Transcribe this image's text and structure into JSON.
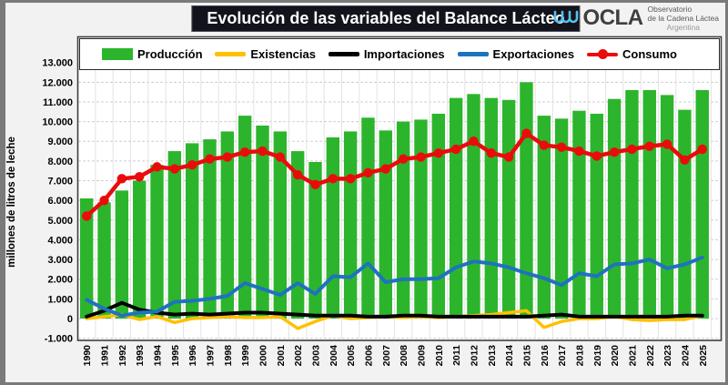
{
  "header": {
    "title": "Evolución de las variables del Balance Lácteo",
    "logo": {
      "name": "OCLA",
      "line1": "Observatorio",
      "line2": "de la Cadena Láctea",
      "line3": "Argentina"
    }
  },
  "chart_data": {
    "type": "bar",
    "subtype": "combo-bar-lines",
    "title": "Evolución de las variables del Balance Lácteo",
    "ylabel": "millones de litros de leche",
    "ylim": [
      -1000,
      13000
    ],
    "ytick_step": 1000,
    "ytick_labels": [
      "13.000",
      "12.000",
      "11.000",
      "10.000",
      "9.000",
      "8.000",
      "7.000",
      "6.000",
      "5.000",
      "4.000",
      "3.000",
      "2.000",
      "1.000",
      "0",
      "-1.000"
    ],
    "grid": "horizontal-dashed",
    "legend_position": "top",
    "categories": [
      "1990",
      "1991",
      "1992",
      "1993",
      "1994",
      "1995",
      "1996",
      "1997",
      "1998",
      "1999",
      "2000",
      "2001",
      "2002",
      "2003",
      "2004",
      "2005",
      "2006",
      "2007",
      "2008",
      "2009",
      "2010",
      "2011",
      "2012",
      "2013",
      "2014",
      "2015",
      "2016",
      "2017",
      "2018",
      "2019",
      "2020",
      "2021",
      "2022",
      "2023",
      "2024",
      "2025"
    ],
    "series": [
      {
        "name": "Producción",
        "type": "bar",
        "color": "#2cb52c",
        "values": [
          6100,
          5900,
          6500,
          7000,
          7800,
          8500,
          8900,
          9100,
          9500,
          10300,
          9800,
          9500,
          8500,
          7950,
          9200,
          9500,
          10200,
          9550,
          10000,
          10100,
          10400,
          11200,
          11400,
          11200,
          11100,
          12000,
          10300,
          10150,
          10550,
          10400,
          11150,
          11600,
          11600,
          11350,
          10600,
          11600
        ]
      },
      {
        "name": "Existencias",
        "type": "line",
        "color": "#ffc000",
        "values": [
          0,
          100,
          200,
          -50,
          100,
          -200,
          0,
          50,
          100,
          50,
          50,
          100,
          -500,
          -150,
          150,
          0,
          50,
          100,
          50,
          100,
          50,
          100,
          150,
          200,
          300,
          400,
          -450,
          -150,
          0,
          0,
          100,
          -50,
          -100,
          -50,
          -50,
          150
        ]
      },
      {
        "name": "Importaciones",
        "type": "line",
        "color": "#000000",
        "values": [
          100,
          400,
          800,
          450,
          300,
          200,
          250,
          200,
          250,
          300,
          300,
          250,
          200,
          150,
          150,
          150,
          100,
          100,
          150,
          150,
          100,
          100,
          100,
          100,
          100,
          100,
          150,
          200,
          100,
          100,
          100,
          100,
          100,
          100,
          150,
          150
        ]
      },
      {
        "name": "Exportaciones",
        "type": "line",
        "color": "#1e73be",
        "values": [
          950,
          500,
          150,
          300,
          350,
          850,
          900,
          1000,
          1150,
          1800,
          1500,
          1200,
          1800,
          1250,
          2150,
          2100,
          2800,
          1850,
          2000,
          2000,
          2050,
          2600,
          2900,
          2800,
          2600,
          2300,
          2050,
          1700,
          2300,
          2150,
          2750,
          2800,
          3000,
          2550,
          2750,
          3100
        ]
      },
      {
        "name": "Consumo",
        "type": "line-marker",
        "color": "#ea0b0b",
        "values": [
          5200,
          6000,
          7100,
          7200,
          7700,
          7600,
          7800,
          8100,
          8200,
          8450,
          8500,
          8200,
          7300,
          6800,
          7100,
          7100,
          7400,
          7600,
          8100,
          8200,
          8400,
          8600,
          9000,
          8400,
          8200,
          9400,
          8800,
          8700,
          8500,
          8250,
          8450,
          8600,
          8750,
          8850,
          8050,
          8600
        ]
      }
    ]
  }
}
